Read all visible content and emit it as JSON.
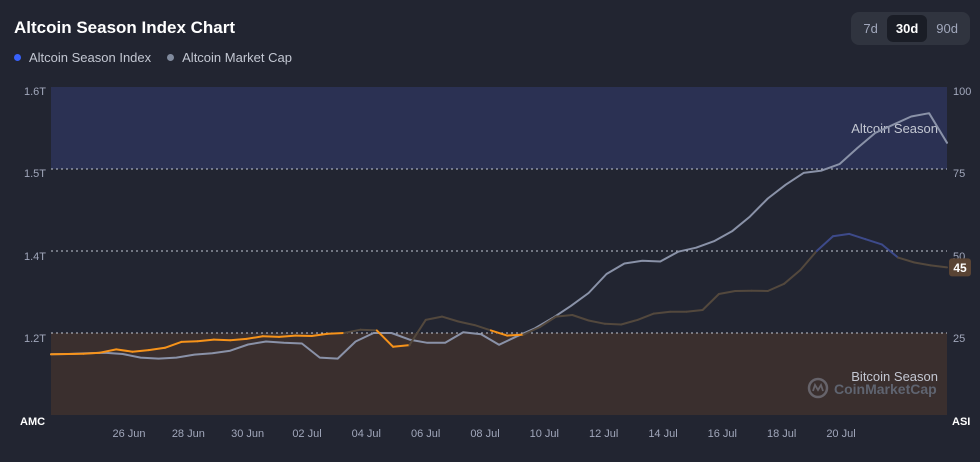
{
  "title": "Altcoin Season Index Chart",
  "legend": [
    {
      "label": "Altcoin Season Index",
      "color": "#3861fb"
    },
    {
      "label": "Altcoin Market Cap",
      "color": "#808a9d"
    }
  ],
  "ranges": [
    "7d",
    "30d",
    "90d"
  ],
  "active_range": "30d",
  "colors": {
    "altcoin_band": "#2b3153",
    "bitcoin_band": "#3a2f2e",
    "market_cap_line": "#8a92a8",
    "index_line_bitcoin": "#f7931a",
    "index_line_neutral": "#53483d",
    "index_line_altcoin": "#3d4a8a",
    "current_badge": "#5a4434"
  },
  "band_labels": {
    "altcoin": "Altcoin Season",
    "bitcoin": "Bitcoin Season"
  },
  "watermark": "CoinMarketCap",
  "chart_data": {
    "type": "line",
    "left_axis": {
      "name": "AMC",
      "ticks": [
        "1.6T",
        "1.5T",
        "1.4T",
        "1.2T"
      ]
    },
    "right_axis": {
      "name": "ASI",
      "ticks": [
        "100",
        "75",
        "50",
        "25"
      ],
      "ylim": [
        0,
        100
      ]
    },
    "x_labels": [
      "26 Jun",
      "28 Jun",
      "30 Jun",
      "02 Jul",
      "04 Jul",
      "06 Jul",
      "08 Jul",
      "10 Jul",
      "12 Jul",
      "14 Jul",
      "16 Jul",
      "18 Jul",
      "20 Jul"
    ],
    "series": [
      {
        "name": "Altcoin Market Cap",
        "axis": "left",
        "values": [
          18.5,
          18.6,
          18.8,
          19.0,
          18.6,
          17.5,
          17.2,
          17.5,
          18.4,
          18.8,
          19.6,
          21.5,
          22.4,
          22.0,
          21.8,
          17.5,
          17.2,
          22.4,
          25.0,
          25.0,
          23.0,
          22.0,
          22.0,
          25.2,
          24.6,
          21.4,
          24.0,
          26.4,
          29.6,
          33.2,
          37.2,
          43.0,
          46.2,
          47.0,
          46.8,
          49.8,
          51.0,
          53.0,
          56.0,
          60.5,
          66.0,
          70.2,
          73.8,
          74.5,
          76.5,
          81.4,
          86.0,
          88.5,
          91.0,
          92.0,
          83.0
        ]
      },
      {
        "name": "Altcoin Season Index",
        "axis": "right",
        "values": [
          18.5,
          18.6,
          18.7,
          19.0,
          20.0,
          19.3,
          19.8,
          20.5,
          22.3,
          22.5,
          23.0,
          22.8,
          23.2,
          24.0,
          23.8,
          24.2,
          24.1,
          24.8,
          25.0,
          26.0,
          25.8,
          20.8,
          21.3,
          29.0,
          30.0,
          28.5,
          27.4,
          25.8,
          24.2,
          24.5,
          26.8,
          30.0,
          30.5,
          28.8,
          27.8,
          27.6,
          29.0,
          30.9,
          31.5,
          31.5,
          32.0,
          36.9,
          37.8,
          37.9,
          37.8,
          40.0,
          44.2,
          50.0,
          54.5,
          55.2,
          53.6,
          52.0,
          48.0,
          46.5,
          45.6,
          45.0
        ],
        "current_value": 45
      }
    ]
  }
}
